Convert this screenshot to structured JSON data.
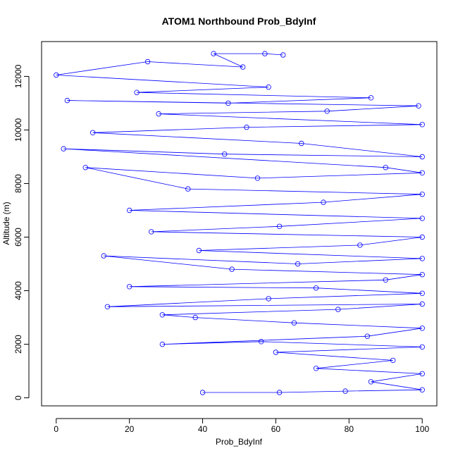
{
  "chart_data": {
    "type": "line",
    "title": "ATOM1 Northbound Prob_BdyInf",
    "xlabel": "Prob_BdyInf",
    "ylabel": "Altitude (m)",
    "xlim": [
      -4,
      104
    ],
    "ylim": [
      -300,
      13300
    ],
    "x_ticks": [
      0,
      20,
      40,
      60,
      80,
      100
    ],
    "y_ticks": [
      0,
      2000,
      4000,
      6000,
      8000,
      10000,
      12000
    ],
    "grid": false,
    "legend": "none",
    "series": [
      {
        "color": "#0000ff",
        "marker": "open-circle",
        "points": [
          [
            40,
            200
          ],
          [
            61,
            200
          ],
          [
            79,
            250
          ],
          [
            100,
            300
          ],
          [
            86,
            600
          ],
          [
            100,
            900
          ],
          [
            71,
            1100
          ],
          [
            92,
            1400
          ],
          [
            60,
            1700
          ],
          [
            100,
            1900
          ],
          [
            56,
            2100
          ],
          [
            29,
            2000
          ],
          [
            85,
            2300
          ],
          [
            100,
            2600
          ],
          [
            65,
            2800
          ],
          [
            38,
            3000
          ],
          [
            29,
            3100
          ],
          [
            77,
            3300
          ],
          [
            100,
            3500
          ],
          [
            14,
            3400
          ],
          [
            58,
            3700
          ],
          [
            100,
            3900
          ],
          [
            71,
            4100
          ],
          [
            20,
            4150
          ],
          [
            90,
            4400
          ],
          [
            100,
            4600
          ],
          [
            48,
            4800
          ],
          [
            13,
            5300
          ],
          [
            66,
            5000
          ],
          [
            100,
            5200
          ],
          [
            39,
            5500
          ],
          [
            83,
            5700
          ],
          [
            100,
            6000
          ],
          [
            26,
            6200
          ],
          [
            61,
            6400
          ],
          [
            100,
            6700
          ],
          [
            20,
            7000
          ],
          [
            73,
            7300
          ],
          [
            100,
            7600
          ],
          [
            36,
            7800
          ],
          [
            8,
            8600
          ],
          [
            55,
            8200
          ],
          [
            100,
            8400
          ],
          [
            90,
            8600
          ],
          [
            2,
            9300
          ],
          [
            46,
            9100
          ],
          [
            100,
            9000
          ],
          [
            67,
            9500
          ],
          [
            10,
            9900
          ],
          [
            52,
            10100
          ],
          [
            100,
            10200
          ],
          [
            28,
            10600
          ],
          [
            74,
            10700
          ],
          [
            99,
            10900
          ],
          [
            3,
            11100
          ],
          [
            47,
            11000
          ],
          [
            86,
            11200
          ],
          [
            22,
            11400
          ],
          [
            58,
            11600
          ],
          [
            0,
            12050
          ],
          [
            25,
            12550
          ],
          [
            51,
            12350
          ],
          [
            43,
            12850
          ],
          [
            57,
            12850
          ],
          [
            62,
            12800
          ]
        ]
      }
    ]
  }
}
